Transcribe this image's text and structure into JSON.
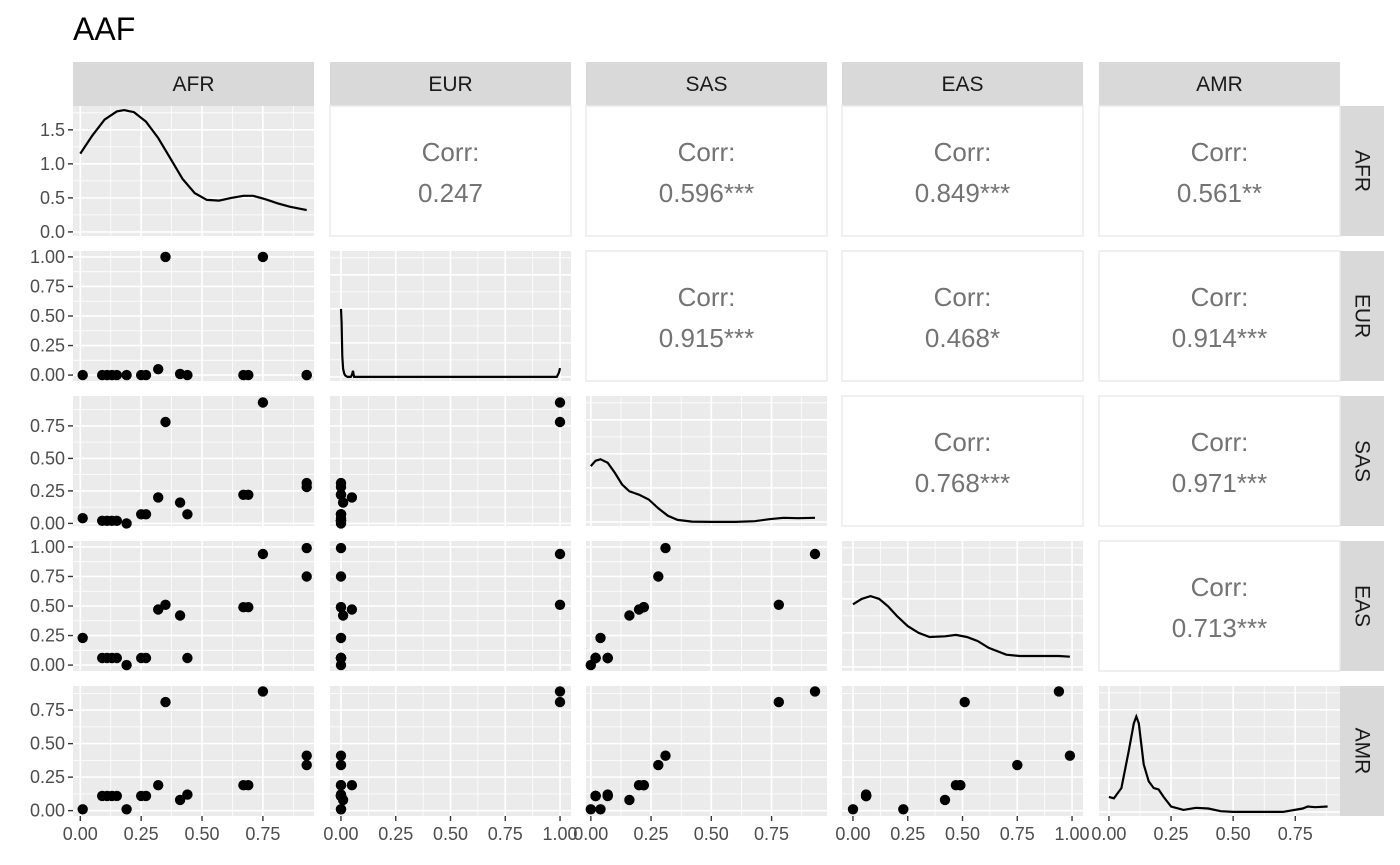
{
  "chart_data": {
    "type": "scatter-matrix",
    "title": "AAF",
    "variables": [
      "AFR",
      "EUR",
      "SAS",
      "EAS",
      "AMR"
    ],
    "axis_ticks": {
      "AFR": {
        "values": [
          0,
          0.25,
          0.5,
          0.75
        ],
        "labels": [
          "0.00",
          "0.25",
          "0.50",
          "0.75"
        ],
        "lim": [
          -0.03,
          0.96
        ]
      },
      "EUR": {
        "values": [
          0,
          0.25,
          0.5,
          0.75,
          1
        ],
        "labels": [
          "0.00",
          "0.25",
          "0.50",
          "0.75",
          "1.00"
        ],
        "lim": [
          -0.05,
          1.05
        ]
      },
      "SAS": {
        "values": [
          0,
          0.25,
          0.5,
          0.75
        ],
        "labels": [
          "0.00",
          "0.25",
          "0.50",
          "0.75"
        ],
        "lim": [
          -0.02,
          0.98
        ]
      },
      "EAS": {
        "values": [
          0,
          0.25,
          0.5,
          0.75,
          1
        ],
        "labels": [
          "0.00",
          "0.25",
          "0.50",
          "0.75",
          "1.00"
        ],
        "lim": [
          -0.05,
          1.05
        ]
      },
      "AMR": {
        "values": [
          0,
          0.25,
          0.5,
          0.75
        ],
        "labels": [
          "0.00",
          "0.25",
          "0.50",
          "0.75"
        ],
        "lim": [
          -0.04,
          0.93
        ]
      }
    },
    "density_ticks": {
      "values": [
        0,
        0.5,
        1.0,
        1.5
      ],
      "labels": [
        "0.0",
        "0.5",
        "1.0",
        "1.5"
      ],
      "lim": [
        -0.06,
        1.85
      ]
    },
    "correlations": [
      {
        "row": "AFR",
        "col": "EUR",
        "label": "Corr:",
        "value": "0.247"
      },
      {
        "row": "AFR",
        "col": "SAS",
        "label": "Corr:",
        "value": "0.596***"
      },
      {
        "row": "AFR",
        "col": "EAS",
        "label": "Corr:",
        "value": "0.849***"
      },
      {
        "row": "AFR",
        "col": "AMR",
        "label": "Corr:",
        "value": "0.561**"
      },
      {
        "row": "EUR",
        "col": "SAS",
        "label": "Corr:",
        "value": "0.915***"
      },
      {
        "row": "EUR",
        "col": "EAS",
        "label": "Corr:",
        "value": "0.468*"
      },
      {
        "row": "EUR",
        "col": "AMR",
        "label": "Corr:",
        "value": "0.914***"
      },
      {
        "row": "SAS",
        "col": "EAS",
        "label": "Corr:",
        "value": "0.768***"
      },
      {
        "row": "SAS",
        "col": "AMR",
        "label": "Corr:",
        "value": "0.971***"
      },
      {
        "row": "EAS",
        "col": "AMR",
        "label": "Corr:",
        "value": "0.713***"
      }
    ],
    "observations": [
      {
        "AFR": 0.01,
        "EUR": 0.0,
        "SAS": 0.04,
        "EAS": 0.23,
        "AMR": 0.01
      },
      {
        "AFR": 0.09,
        "EUR": 0.0,
        "SAS": 0.02,
        "EAS": 0.06,
        "AMR": 0.11
      },
      {
        "AFR": 0.11,
        "EUR": 0.0,
        "SAS": 0.02,
        "EAS": 0.06,
        "AMR": 0.11
      },
      {
        "AFR": 0.13,
        "EUR": 0.0,
        "SAS": 0.02,
        "EAS": 0.06,
        "AMR": 0.11
      },
      {
        "AFR": 0.15,
        "EUR": 0.0,
        "SAS": 0.02,
        "EAS": 0.06,
        "AMR": 0.11
      },
      {
        "AFR": 0.19,
        "EUR": 0.0,
        "SAS": 0.0,
        "EAS": 0.0,
        "AMR": 0.01
      },
      {
        "AFR": 0.25,
        "EUR": 0.0,
        "SAS": 0.07,
        "EAS": 0.06,
        "AMR": 0.11
      },
      {
        "AFR": 0.27,
        "EUR": 0.0,
        "SAS": 0.07,
        "EAS": 0.06,
        "AMR": 0.11
      },
      {
        "AFR": 0.32,
        "EUR": 0.05,
        "SAS": 0.2,
        "EAS": 0.47,
        "AMR": 0.19
      },
      {
        "AFR": 0.35,
        "EUR": 1.0,
        "SAS": 0.78,
        "EAS": 0.51,
        "AMR": 0.81
      },
      {
        "AFR": 0.41,
        "EUR": 0.01,
        "SAS": 0.16,
        "EAS": 0.42,
        "AMR": 0.08
      },
      {
        "AFR": 0.44,
        "EUR": 0.0,
        "SAS": 0.07,
        "EAS": 0.06,
        "AMR": 0.12
      },
      {
        "AFR": 0.67,
        "EUR": 0.0,
        "SAS": 0.22,
        "EAS": 0.49,
        "AMR": 0.19
      },
      {
        "AFR": 0.69,
        "EUR": 0.0,
        "SAS": 0.22,
        "EAS": 0.49,
        "AMR": 0.19
      },
      {
        "AFR": 0.75,
        "EUR": 1.0,
        "SAS": 0.93,
        "EAS": 0.94,
        "AMR": 0.89
      },
      {
        "AFR": 0.93,
        "EUR": 0.0,
        "SAS": 0.28,
        "EAS": 0.75,
        "AMR": 0.34
      },
      {
        "AFR": 0.93,
        "EUR": 0.0,
        "SAS": 0.31,
        "EAS": 0.99,
        "AMR": 0.41
      }
    ],
    "densities": {
      "AFR": {
        "x": [
          0.0,
          0.05,
          0.1,
          0.15,
          0.18,
          0.22,
          0.27,
          0.32,
          0.37,
          0.42,
          0.47,
          0.52,
          0.57,
          0.62,
          0.67,
          0.71,
          0.76,
          0.81,
          0.86,
          0.93
        ],
        "y": [
          1.15,
          1.42,
          1.65,
          1.77,
          1.79,
          1.76,
          1.62,
          1.38,
          1.08,
          0.78,
          0.57,
          0.47,
          0.46,
          0.5,
          0.53,
          0.53,
          0.48,
          0.42,
          0.37,
          0.32
        ]
      },
      "EUR": {
        "x": [
          0.0,
          0.003,
          0.006,
          0.01,
          0.015,
          0.02,
          0.03,
          0.045,
          0.05,
          0.055,
          0.06,
          0.07,
          0.2,
          0.4,
          0.6,
          0.8,
          0.985,
          0.995,
          1.0
        ],
        "y": [
          1.0,
          0.8,
          0.3,
          0.12,
          0.05,
          0.02,
          0.0,
          0.0,
          0.03,
          0.09,
          0.0,
          0.0,
          0.0,
          0.0,
          0.0,
          0.0,
          0.0,
          0.06,
          0.13
        ]
      },
      "SAS": {
        "x": [
          0.0,
          0.02,
          0.04,
          0.07,
          0.1,
          0.13,
          0.16,
          0.2,
          0.24,
          0.28,
          0.32,
          0.36,
          0.42,
          0.5,
          0.6,
          0.68,
          0.74,
          0.8,
          0.86,
          0.93
        ],
        "y": [
          0.82,
          0.9,
          0.92,
          0.87,
          0.72,
          0.55,
          0.45,
          0.4,
          0.33,
          0.2,
          0.09,
          0.03,
          0.005,
          0.0,
          0.0,
          0.01,
          0.04,
          0.06,
          0.055,
          0.06
        ]
      },
      "EAS": {
        "x": [
          0.0,
          0.04,
          0.08,
          0.12,
          0.16,
          0.2,
          0.25,
          0.3,
          0.35,
          0.42,
          0.47,
          0.52,
          0.57,
          0.62,
          0.7,
          0.76,
          0.82,
          0.88,
          0.94,
          0.99
        ],
        "y": [
          0.92,
          1.0,
          1.04,
          1.0,
          0.89,
          0.75,
          0.6,
          0.5,
          0.44,
          0.45,
          0.47,
          0.44,
          0.38,
          0.28,
          0.18,
          0.16,
          0.16,
          0.16,
          0.16,
          0.15
        ]
      },
      "AMR": {
        "x": [
          0.0,
          0.02,
          0.05,
          0.08,
          0.1,
          0.11,
          0.12,
          0.14,
          0.16,
          0.18,
          0.2,
          0.22,
          0.25,
          0.3,
          0.35,
          0.4,
          0.45,
          0.5,
          0.6,
          0.7,
          0.78,
          0.8,
          0.83,
          0.88
        ],
        "y": [
          0.22,
          0.2,
          0.35,
          0.9,
          1.3,
          1.4,
          1.3,
          0.7,
          0.45,
          0.35,
          0.33,
          0.22,
          0.08,
          0.03,
          0.06,
          0.05,
          0.01,
          0.0,
          0.0,
          0.0,
          0.05,
          0.08,
          0.07,
          0.08
        ]
      }
    }
  }
}
